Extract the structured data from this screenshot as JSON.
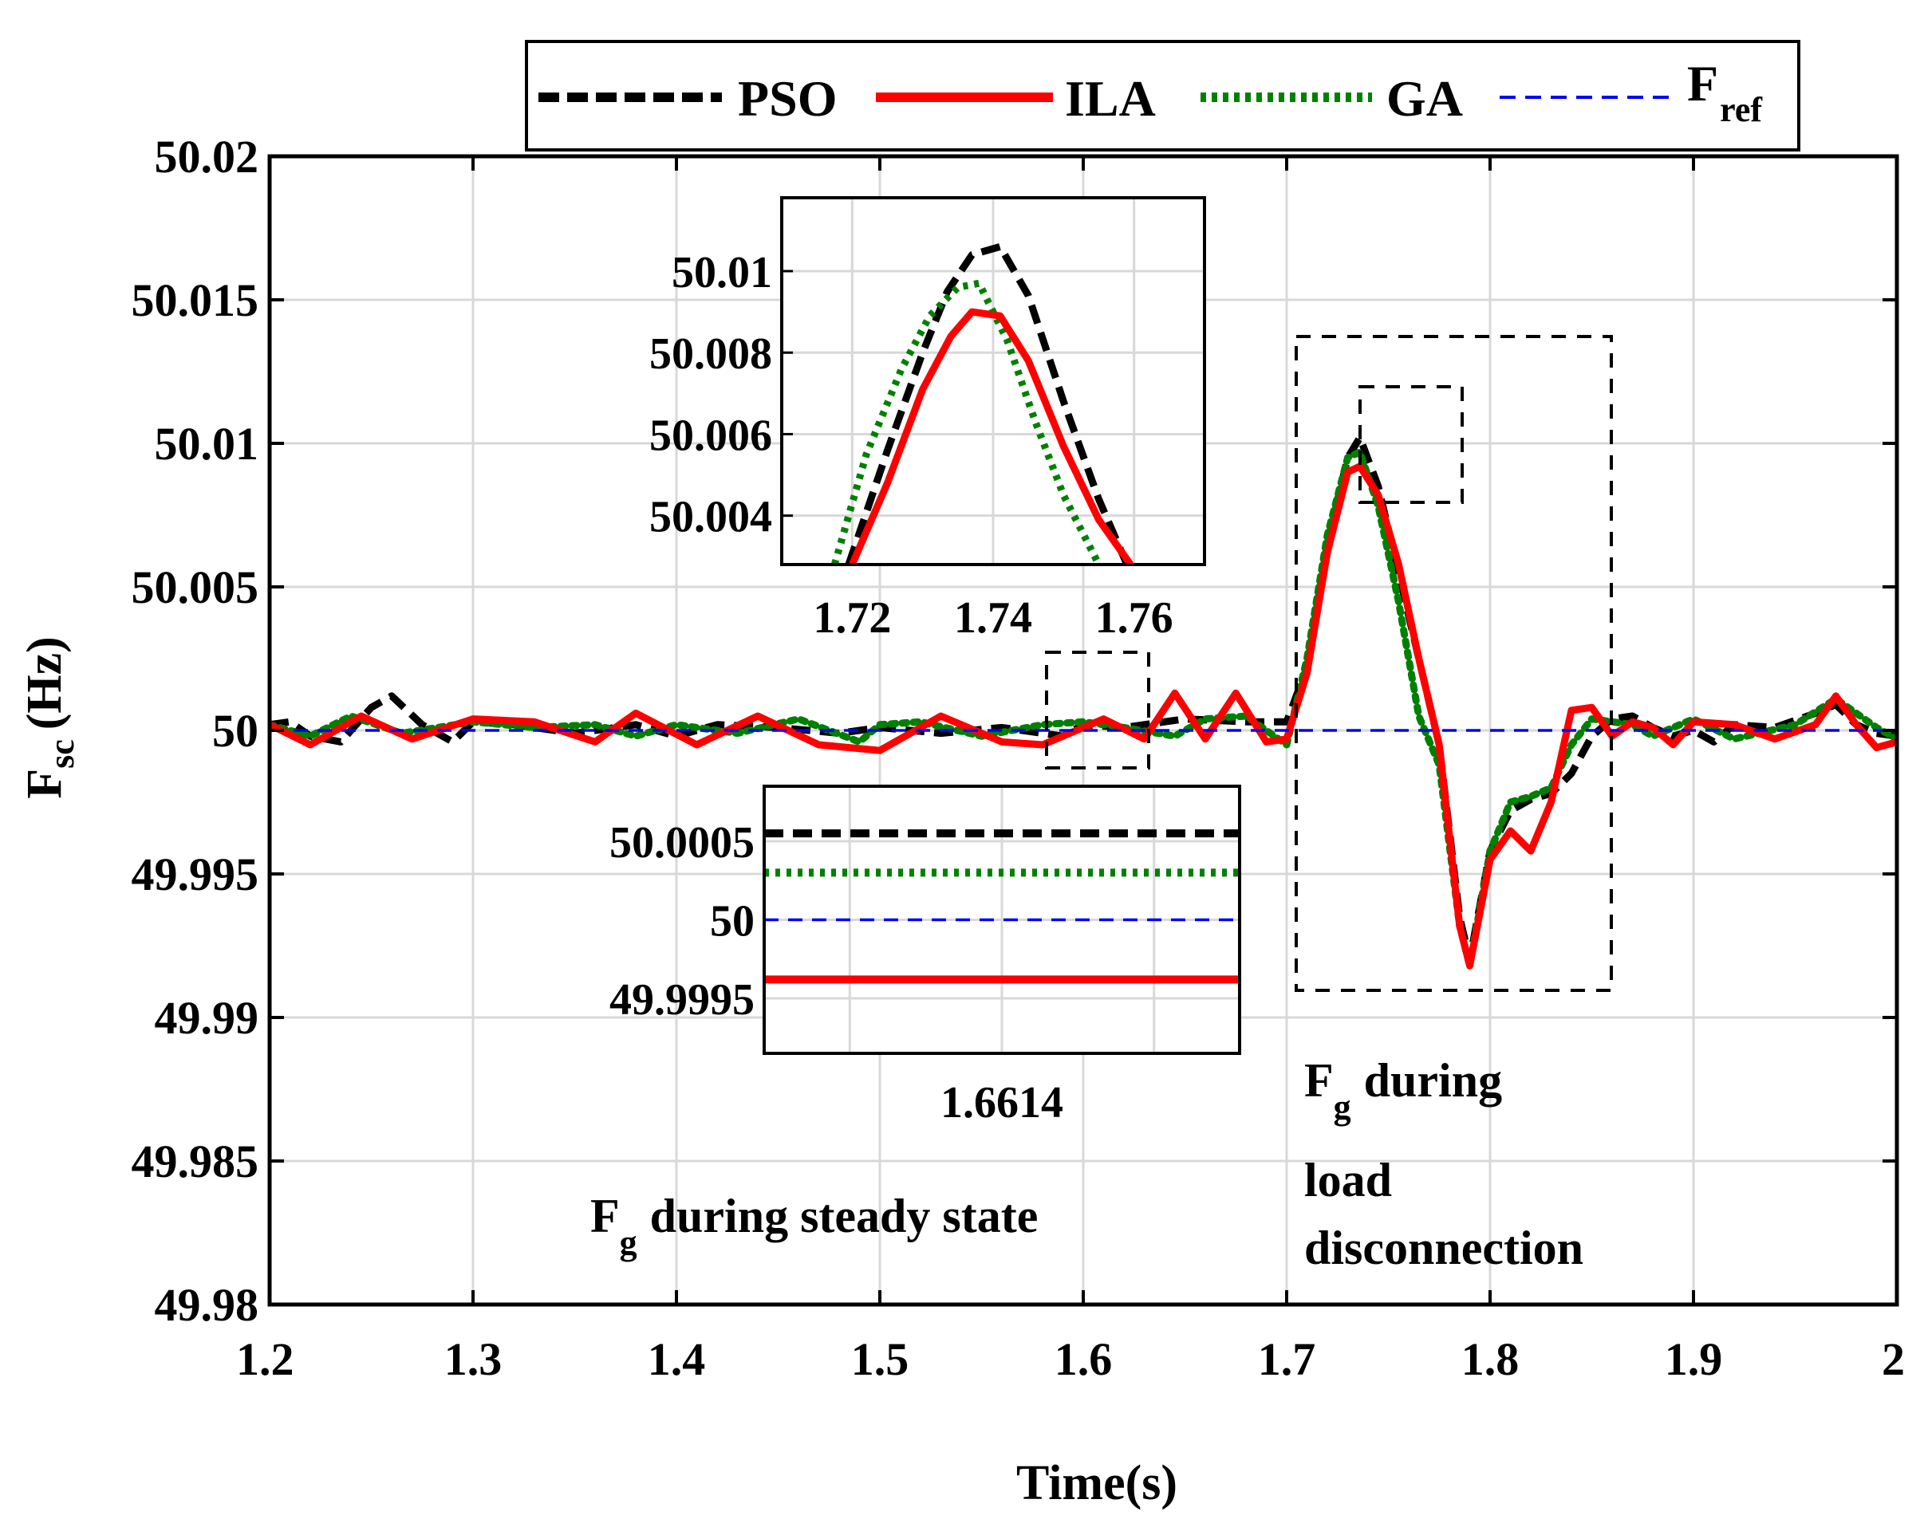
{
  "chart_data": {
    "type": "line",
    "xlabel": "Time(s)",
    "ylabel": {
      "main": "F",
      "sub": "sc",
      "unit": "(Hz)"
    },
    "xlim": [
      1.2,
      2.0
    ],
    "ylim": [
      49.98,
      50.02
    ],
    "xticks": [
      1.2,
      1.3,
      1.4,
      1.5,
      1.6,
      1.7,
      1.8,
      1.9,
      2.0
    ],
    "xtick_labels": [
      "1.2",
      "1.3",
      "1.4",
      "1.5",
      "1.6",
      "1.7",
      "1.8",
      "1.9",
      "2"
    ],
    "yticks": [
      49.98,
      49.985,
      49.99,
      49.995,
      50.0,
      50.005,
      50.01,
      50.015,
      50.02
    ],
    "ytick_labels": [
      "49.98",
      "49.985",
      "49.99",
      "49.995",
      "50",
      "50.005",
      "50.01",
      "50.015",
      "50.02"
    ],
    "grid": true,
    "legend_position": "top-right",
    "legend": [
      {
        "name": "PSO",
        "color": "#000000",
        "style": "dashed-thick"
      },
      {
        "name": "ILA",
        "color": "#ff0000",
        "style": "solid-thick"
      },
      {
        "name": "GA",
        "color": "#008000",
        "style": "dotted-thick"
      },
      {
        "name": "F",
        "sub": "ref",
        "color": "#0000ff",
        "style": "dashed-thin"
      }
    ],
    "series": [
      {
        "name": "PSO",
        "color": "#000000",
        "x": [
          1.2,
          1.21,
          1.22,
          1.235,
          1.25,
          1.26,
          1.275,
          1.29,
          1.3,
          1.32,
          1.35,
          1.38,
          1.4,
          1.42,
          1.45,
          1.48,
          1.5,
          1.53,
          1.56,
          1.59,
          1.6,
          1.62,
          1.65,
          1.68,
          1.7,
          1.71,
          1.72,
          1.73,
          1.736,
          1.745,
          1.755,
          1.765,
          1.775,
          1.785,
          1.79,
          1.8,
          1.81,
          1.82,
          1.83,
          1.84,
          1.85,
          1.86,
          1.87,
          1.88,
          1.89,
          1.9,
          1.91,
          1.92,
          1.94,
          1.96,
          1.97,
          1.98,
          1.99,
          2.0
        ],
        "y": [
          50.0002,
          50.0003,
          49.9998,
          49.9996,
          50.0008,
          50.0012,
          50.0002,
          49.9996,
          50.0003,
          50.0002,
          49.9999,
          50.0002,
          49.9998,
          50.0002,
          50.0001,
          49.9999,
          50.0001,
          49.9999,
          50.0001,
          49.9998,
          50.0002,
          50.0001,
          50.0004,
          50.0003,
          50.0003,
          50.0022,
          50.0065,
          50.0095,
          50.0102,
          50.0085,
          50.0055,
          50.0025,
          49.9995,
          49.9935,
          49.992,
          49.9958,
          49.9972,
          49.9976,
          49.9978,
          49.9985,
          49.9998,
          50.0004,
          50.0005,
          50.0001,
          49.9998,
          50.0,
          49.9996,
          50.0002,
          50.0001,
          50.0006,
          50.0009,
          50.0002,
          49.9999,
          49.9998
        ]
      },
      {
        "name": "ILA",
        "color": "#ff0000",
        "x": [
          1.2,
          1.22,
          1.245,
          1.27,
          1.3,
          1.33,
          1.36,
          1.38,
          1.41,
          1.44,
          1.47,
          1.5,
          1.53,
          1.56,
          1.58,
          1.61,
          1.63,
          1.645,
          1.66,
          1.675,
          1.69,
          1.7,
          1.71,
          1.72,
          1.73,
          1.736,
          1.745,
          1.755,
          1.765,
          1.775,
          1.785,
          1.79,
          1.8,
          1.81,
          1.82,
          1.83,
          1.84,
          1.85,
          1.86,
          1.87,
          1.88,
          1.89,
          1.9,
          1.92,
          1.94,
          1.96,
          1.97,
          1.98,
          1.99,
          2.0
        ],
        "y": [
          50.0002,
          49.9995,
          50.0005,
          49.9997,
          50.0004,
          50.0003,
          49.9996,
          50.0006,
          49.9995,
          50.0005,
          49.9995,
          49.9993,
          50.0005,
          49.9996,
          49.9995,
          50.0004,
          49.9997,
          50.0013,
          49.9997,
          50.0013,
          49.9996,
          49.9997,
          50.002,
          50.0062,
          50.009,
          50.0092,
          50.0082,
          50.0058,
          50.0025,
          49.9995,
          49.9932,
          49.9918,
          49.9955,
          49.9965,
          49.9958,
          49.9975,
          50.0007,
          50.0008,
          49.9998,
          50.0003,
          50.0001,
          49.9995,
          50.0003,
          50.0002,
          49.9997,
          50.0002,
          50.0012,
          50.0002,
          49.9994,
          49.9996
        ]
      },
      {
        "name": "GA",
        "color": "#008000",
        "x": [
          1.2,
          1.22,
          1.24,
          1.265,
          1.3,
          1.33,
          1.36,
          1.38,
          1.4,
          1.43,
          1.46,
          1.49,
          1.5,
          1.52,
          1.55,
          1.58,
          1.6,
          1.62,
          1.645,
          1.66,
          1.68,
          1.7,
          1.71,
          1.72,
          1.73,
          1.736,
          1.745,
          1.755,
          1.765,
          1.775,
          1.785,
          1.79,
          1.8,
          1.81,
          1.82,
          1.83,
          1.84,
          1.85,
          1.86,
          1.87,
          1.88,
          1.9,
          1.92,
          1.95,
          1.97,
          1.99,
          2.0
        ],
        "y": [
          50.0002,
          49.9998,
          50.0005,
          49.9999,
          50.0003,
          50.0001,
          50.0002,
          49.9998,
          50.0002,
          49.9999,
          50.0004,
          49.9996,
          50.0002,
          50.0003,
          49.9998,
          50.0002,
          50.0003,
          50.0001,
          49.9998,
          50.0004,
          50.0005,
          49.9995,
          50.0025,
          50.0068,
          50.0095,
          50.0097,
          50.0078,
          50.0045,
          50.0005,
          49.9988,
          49.9932,
          49.9918,
          49.9958,
          49.9975,
          49.9977,
          49.998,
          49.9995,
          50.0004,
          50.0003,
          50.0002,
          49.9998,
          50.0004,
          49.9997,
          50.0002,
          50.0011,
          50.0001,
          49.9997
        ]
      },
      {
        "name": "Fref",
        "color": "#0000ff",
        "x": [
          1.2,
          2.0
        ],
        "y": [
          50.0,
          50.0
        ]
      }
    ],
    "annotations": {
      "steady": {
        "main": "F",
        "sub": "g",
        "text": "during steady state"
      },
      "load": {
        "main": "F",
        "sub": "g",
        "line1": "during",
        "line2": "load",
        "line3": "disconnection"
      }
    },
    "insets": [
      {
        "name": "peak-zoom",
        "xlim": [
          1.71,
          1.77
        ],
        "ylim": [
          50.0028,
          50.0118
        ],
        "xticks": [
          1.72,
          1.74,
          1.76
        ],
        "xtick_labels": [
          "1.72",
          "1.74",
          "1.76"
        ],
        "yticks": [
          50.004,
          50.006,
          50.008,
          50.01
        ],
        "ytick_labels": [
          "50.004",
          "50.006",
          "50.008",
          "50.01"
        ],
        "series": [
          {
            "name": "PSO",
            "x": [
              1.7195,
              1.725,
              1.73,
              1.7335,
              1.737,
              1.741,
              1.745,
              1.75,
              1.755,
              1.759
            ],
            "y": [
              50.0028,
              50.0056,
              50.008,
              50.0095,
              50.0104,
              50.0106,
              50.0094,
              50.0068,
              50.0044,
              50.0028
            ]
          },
          {
            "name": "ILA",
            "x": [
              1.72,
              1.725,
              1.73,
              1.734,
              1.737,
              1.741,
              1.745,
              1.75,
              1.755,
              1.7595
            ],
            "y": [
              50.0028,
              50.0048,
              50.0071,
              50.0084,
              50.009,
              50.0089,
              50.0078,
              50.0057,
              50.0039,
              50.0028
            ]
          },
          {
            "name": "GA",
            "x": [
              1.7175,
              1.722,
              1.727,
              1.731,
              1.735,
              1.738,
              1.742,
              1.746,
              1.75,
              1.755
            ],
            "y": [
              50.0028,
              50.0055,
              50.0076,
              50.0089,
              50.0096,
              50.0097,
              50.0083,
              50.0063,
              50.0045,
              50.0028
            ]
          }
        ]
      },
      {
        "name": "steady-zoom",
        "ylim": [
          49.99915,
          50.00085
        ],
        "xtick_labels": [
          "1.6614"
        ],
        "ytick_labels": [
          "49.9995",
          "50",
          "50.0005"
        ],
        "yticks": [
          49.9995,
          50.0,
          50.0005
        ],
        "levels": [
          {
            "name": "PSO",
            "value": 50.00055
          },
          {
            "name": "GA",
            "value": 50.0003
          },
          {
            "name": "Fref",
            "value": 50.0
          },
          {
            "name": "ILA",
            "value": 49.99962
          }
        ]
      }
    ]
  }
}
